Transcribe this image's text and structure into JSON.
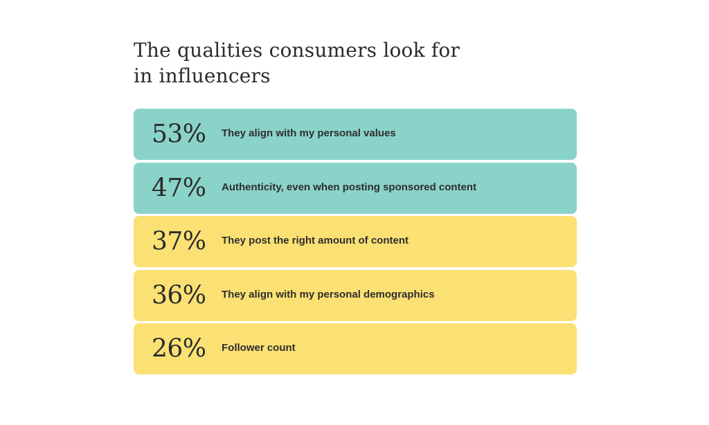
{
  "colors": {
    "teal": "#8ad3c8",
    "yellow": "#fbe173",
    "text": "#2b2b2b"
  },
  "chart_data": {
    "type": "table",
    "title": "The qualities consumers look for in influencers",
    "title_lines": [
      "The qualities consumers look for",
      "in influencers"
    ],
    "rows": [
      {
        "value": 53,
        "display": "53%",
        "label": "They align with my personal values",
        "color_key": "teal"
      },
      {
        "value": 47,
        "display": "47%",
        "label": "Authenticity, even when posting sponsored content",
        "color_key": "teal"
      },
      {
        "value": 37,
        "display": "37%",
        "label": "They post the right amount of content",
        "color_key": "yellow"
      },
      {
        "value": 36,
        "display": "36%",
        "label": "They align with my personal demographics",
        "color_key": "yellow"
      },
      {
        "value": 26,
        "display": "26%",
        "label": "Follower count",
        "color_key": "yellow"
      }
    ]
  }
}
